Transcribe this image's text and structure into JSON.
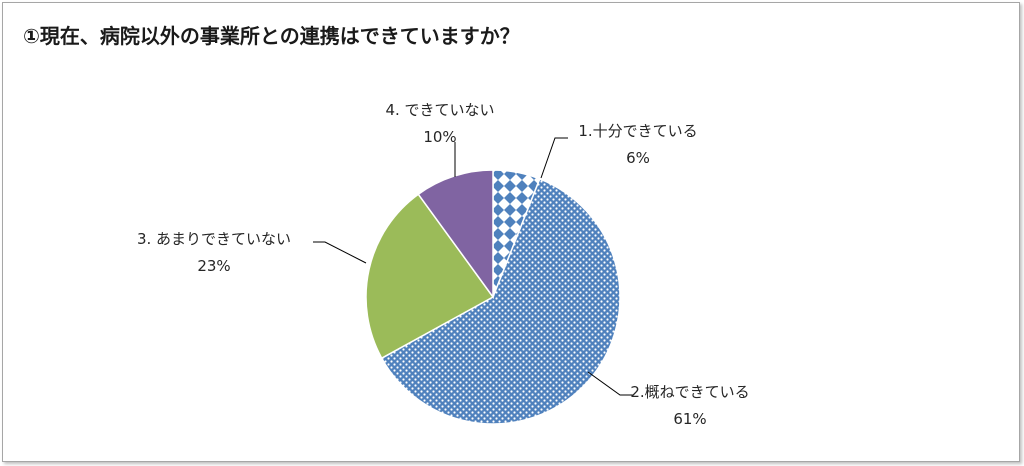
{
  "chart_data": {
    "type": "pie",
    "title": "①現在、病院以外の事業所との連携はできていますか？",
    "slices": [
      {
        "label": "1.十分できている",
        "value": 6,
        "value_label": "6%",
        "color": "#4f81bd",
        "pattern": "diamonds"
      },
      {
        "label": "2.概ねできている",
        "value": 61,
        "value_label": "61%",
        "color": "#4f81bd",
        "pattern": "dots"
      },
      {
        "label": "3. あまりできていない",
        "value": 23,
        "value_label": "23%",
        "color": "#9bbb59",
        "pattern": "solid"
      },
      {
        "label": "4. できていない",
        "value": 10,
        "value_label": "10%",
        "color": "#8064a2",
        "pattern": "solid"
      }
    ],
    "start_angle": "12 o'clock",
    "direction": "clockwise",
    "legend": "none"
  }
}
